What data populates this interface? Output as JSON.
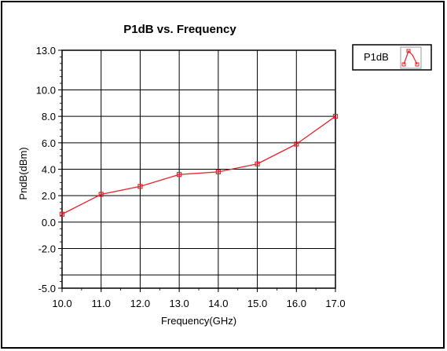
{
  "chart_data": {
    "type": "line",
    "title": "P1dB vs. Frequency",
    "xlabel": "Frequency(GHz)",
    "ylabel": "PndB(dBm)",
    "xlim": [
      10.0,
      17.0
    ],
    "ylim": [
      -5.0,
      13.0
    ],
    "x_ticks": [
      "10.0",
      "11.0",
      "12.0",
      "13.0",
      "14.0",
      "15.0",
      "16.0",
      "17.0"
    ],
    "y_ticks": [
      {
        "value": 13.0,
        "label": "13.0"
      },
      {
        "value": 10.0,
        "label": "10.0"
      },
      {
        "value": 8.0,
        "label": "8.0"
      },
      {
        "value": 6.0,
        "label": "6.0"
      },
      {
        "value": 4.0,
        "label": "4.0"
      },
      {
        "value": 2.0,
        "label": "2.0"
      },
      {
        "value": 0.0,
        "label": "0.0"
      },
      {
        "value": -2.0,
        "label": "-2.0"
      },
      {
        "value": -5.0,
        "label": "-5.0"
      }
    ],
    "grid": true,
    "legend": "top-right",
    "series": [
      {
        "name": "P1dB",
        "color": "#e8202a",
        "x": [
          10.0,
          11.0,
          12.0,
          13.0,
          14.0,
          15.0,
          16.0,
          17.0
        ],
        "y": [
          0.6,
          2.1,
          2.7,
          3.6,
          3.8,
          4.4,
          5.9,
          8.0
        ]
      }
    ]
  }
}
